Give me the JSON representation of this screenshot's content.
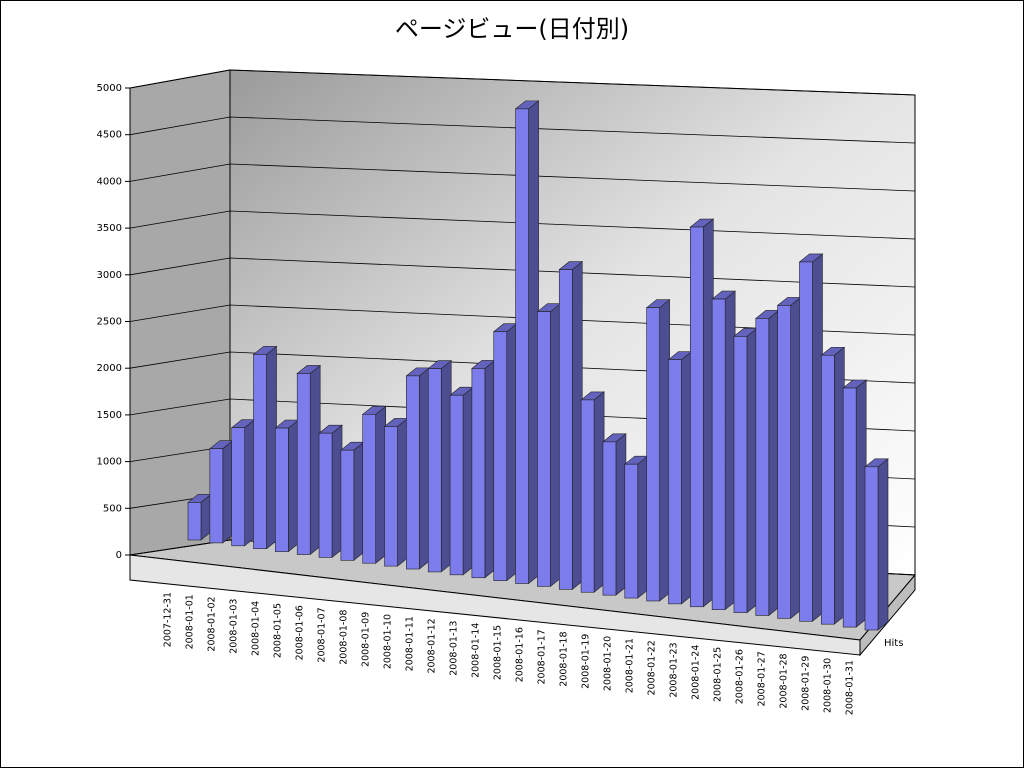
{
  "chart_data": {
    "type": "bar3d",
    "title": "ページビュー(日付別)",
    "categories": [
      "2007-12-31",
      "2008-01-01",
      "2008-01-02",
      "2008-01-03",
      "2008-01-04",
      "2008-01-05",
      "2008-01-06",
      "2008-01-07",
      "2008-01-08",
      "2008-01-09",
      "2008-01-10",
      "2008-01-11",
      "2008-01-12",
      "2008-01-13",
      "2008-01-14",
      "2008-01-15",
      "2008-01-16",
      "2008-01-17",
      "2008-01-18",
      "2008-01-19",
      "2008-01-20",
      "2008-01-21",
      "2008-01-22",
      "2008-01-23",
      "2008-01-24",
      "2008-01-25",
      "2008-01-26",
      "2008-01-27",
      "2008-01-28",
      "2008-01-29",
      "2008-01-30",
      "2008-01-31"
    ],
    "series": [
      {
        "name": "Hits",
        "color": "#7c7cec",
        "values": [
          400,
          1000,
          1250,
          2050,
          1300,
          1900,
          1300,
          1150,
          1550,
          1450,
          2000,
          2100,
          1850,
          2150,
          2550,
          4850,
          2800,
          3250,
          1950,
          1550,
          1350,
          2950,
          2450,
          3800,
          3100,
          2750,
          2950,
          3100,
          3550,
          2650,
          2350,
          1600
        ]
      }
    ],
    "ylim": [
      0,
      5000
    ],
    "yticks": [
      0,
      500,
      1000,
      1500,
      2000,
      2500,
      3000,
      3500,
      4000,
      4500,
      5000
    ],
    "grid": true
  }
}
